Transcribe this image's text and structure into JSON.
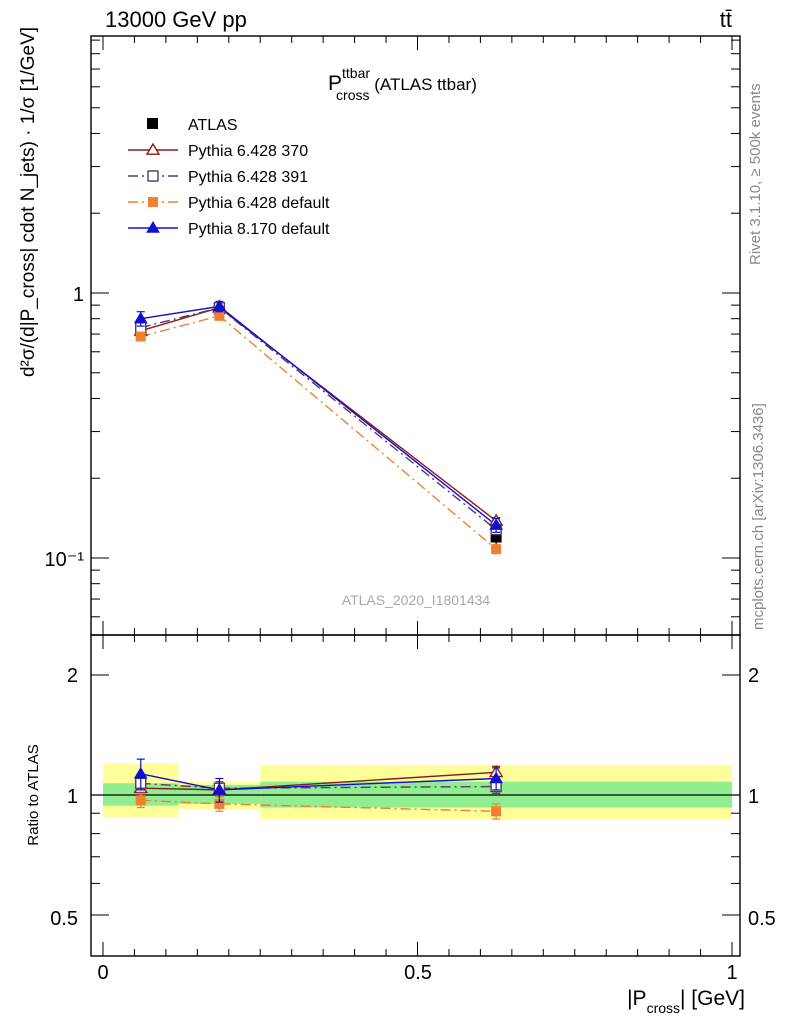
{
  "header": {
    "beam": "13000 GeV pp",
    "process": "tt̄",
    "title_main": "P",
    "title_sup": "ttbar",
    "title_sub": "cross",
    "title_rest": " (ATLAS ttbar)",
    "analysis_id": "ATLAS_2020_I1801434",
    "side_rivet": "Rivet 3.1.10, ≥ 500k events",
    "side_site": "mcplots.cern.ch [arXiv:1306.3436]"
  },
  "axes": {
    "main_ylabel": "d²σ/(d|P_cross| cdot N_jets) · 1/σ  [1/GeV]",
    "ratio_ylabel": "Ratio to ATLAS",
    "xlabel_main": "|P",
    "xlabel_sub": "cross",
    "xlabel_rest": "| [GeV]",
    "x_ticks": [
      "0",
      "0.5",
      "1"
    ],
    "y_ticks_main": [
      "10⁻¹",
      "1"
    ],
    "y_ticks_ratio": [
      "0.5",
      "1",
      "2"
    ]
  },
  "colors": {
    "atlas": "#000000",
    "p370": "#8b1a1a",
    "p391": "#5a3a5a",
    "p6def": "#f08030",
    "p8def": "#1010d0",
    "band_inner": "#90ee90",
    "band_outer": "#ffff99"
  },
  "chart_data": {
    "type": "scatter",
    "x": [
      0.06,
      0.185,
      0.625
    ],
    "x_bins": [
      [
        0.0,
        0.12
      ],
      [
        0.12,
        0.25
      ],
      [
        0.25,
        1.0
      ]
    ],
    "xlim": [
      -0.02,
      1.02
    ],
    "ylim_main": [
      0.055,
      10
    ],
    "log_y_main": true,
    "ylim_ratio": [
      0.4,
      2.4
    ],
    "log_y_ratio": true,
    "data": {
      "name": "ATLAS",
      "values": [
        0.72,
        0.87,
        0.12
      ],
      "errors": [
        0.04,
        0.04,
        0.008
      ]
    },
    "series": [
      {
        "name": "Pythia 6.428 370",
        "values": [
          0.72,
          0.88,
          0.138
        ],
        "errors": [
          0.02,
          0.02,
          0.004
        ],
        "style": "solid",
        "marker": "open-triangle",
        "color_key": "p370"
      },
      {
        "name": "Pythia 6.428 391",
        "values": [
          0.74,
          0.88,
          0.128
        ],
        "errors": [
          0.02,
          0.02,
          0.004
        ],
        "style": "dashdot",
        "marker": "open-square",
        "color_key": "p391"
      },
      {
        "name": "Pythia 6.428 default",
        "values": [
          0.685,
          0.82,
          0.108
        ],
        "errors": [
          0.02,
          0.02,
          0.004
        ],
        "style": "dashdot",
        "marker": "filled-square",
        "color_key": "p6def"
      },
      {
        "name": "Pythia 8.170 default",
        "values": [
          0.8,
          0.89,
          0.133
        ],
        "errors": [
          0.05,
          0.04,
          0.008
        ],
        "style": "solid",
        "marker": "filled-triangle",
        "color_key": "p8def"
      }
    ],
    "ratio_series": [
      {
        "name": "Pythia 6.428 370",
        "values": [
          1.04,
          1.03,
          1.14
        ],
        "errors": [
          0.04,
          0.04,
          0.04
        ]
      },
      {
        "name": "Pythia 6.428 391",
        "values": [
          1.07,
          1.04,
          1.05
        ],
        "errors": [
          0.04,
          0.04,
          0.04
        ]
      },
      {
        "name": "Pythia 6.428 default",
        "values": [
          0.97,
          0.95,
          0.91
        ],
        "errors": [
          0.04,
          0.04,
          0.04
        ]
      },
      {
        "name": "Pythia 8.170 default",
        "values": [
          1.13,
          1.03,
          1.1
        ],
        "errors": [
          0.1,
          0.07,
          0.07
        ]
      }
    ],
    "ratio_band_inner": [
      [
        0.94,
        1.07
      ],
      [
        0.95,
        1.06
      ],
      [
        0.93,
        1.08
      ]
    ],
    "ratio_band_outer": [
      [
        0.88,
        1.2
      ],
      [
        0.92,
        1.08
      ],
      [
        0.87,
        1.19
      ]
    ],
    "legend_position": "top-left"
  }
}
